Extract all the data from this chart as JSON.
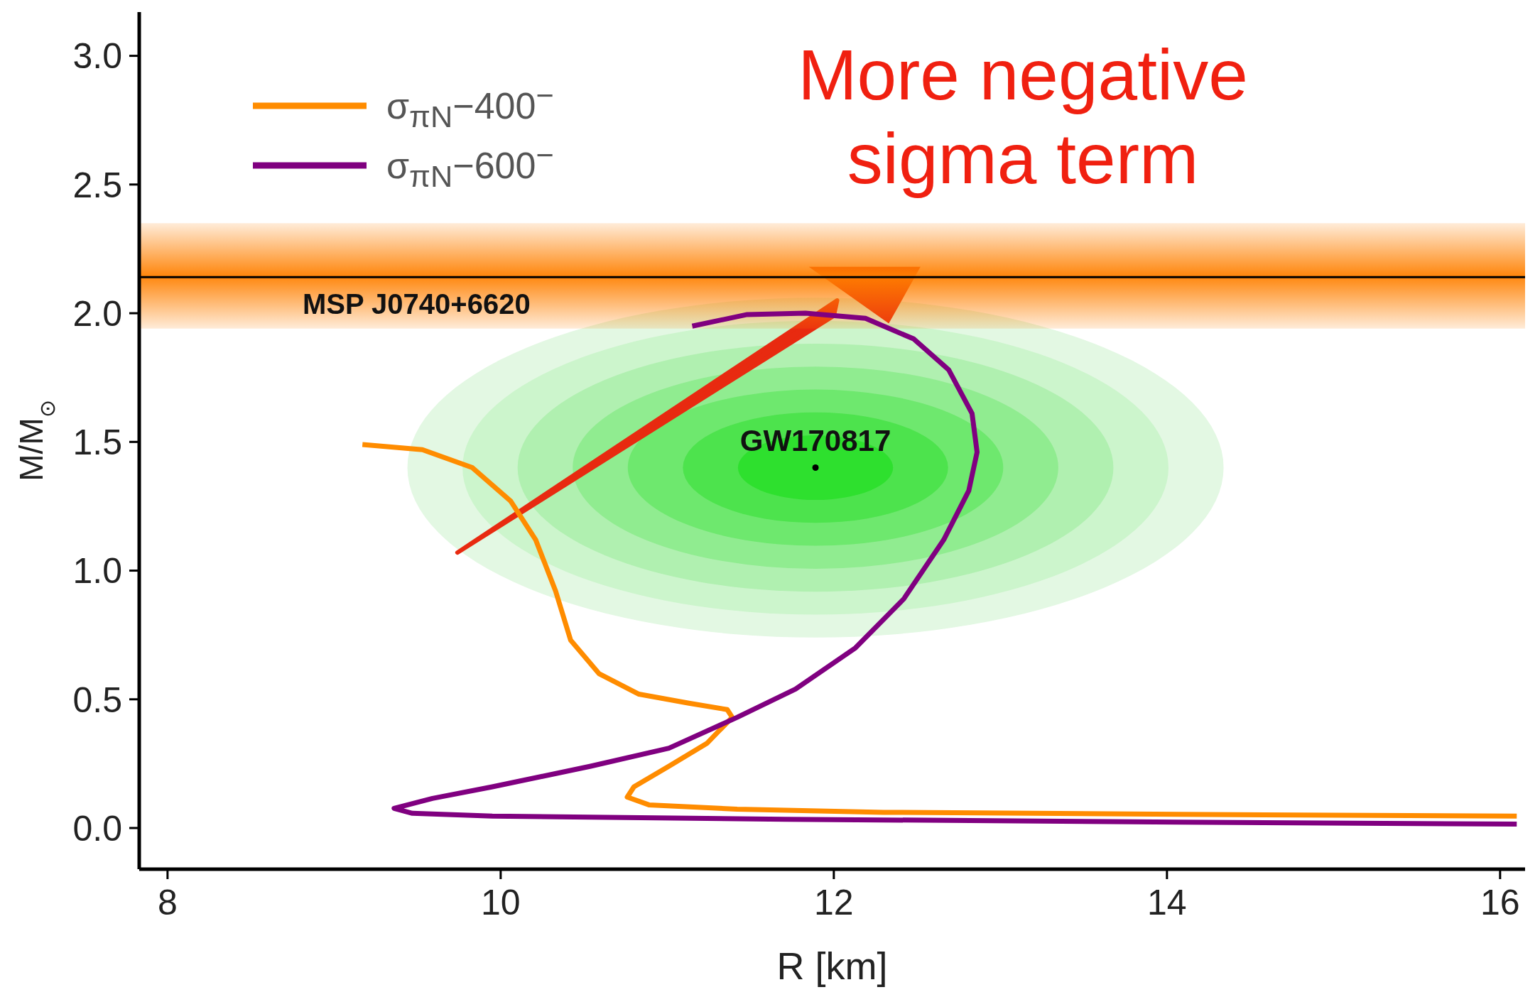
{
  "chart_data": {
    "type": "line",
    "xlabel": "R [km]",
    "ylabel": "M/M$_{⊙}$",
    "xlim": [
      7.83,
      16.15
    ],
    "ylim": [
      -0.16,
      3.17
    ],
    "xticks": [
      8,
      10,
      12,
      14,
      16
    ],
    "yticks": [
      {
        "value": 0,
        "label": "0.0"
      },
      {
        "value": 0.5,
        "label": "0.5"
      },
      {
        "value": 1,
        "label": "1.0"
      },
      {
        "value": 1.5,
        "label": "1.5"
      },
      {
        "value": 2,
        "label": "2.0"
      },
      {
        "value": 2.5,
        "label": "2.5"
      },
      {
        "value": 3,
        "label": "3.0"
      }
    ],
    "grid": false,
    "legend": "top left",
    "marker": "none",
    "line_style": "solid",
    "series": [
      {
        "name": "σ$_{πN}$−400$^{−}$",
        "color": "#ff8c00",
        "x": [
          9.17,
          9.53,
          9.83,
          10.06,
          10.21,
          10.33,
          10.42,
          10.59,
          10.83,
          11.13,
          11.36,
          11.39,
          11.24,
          11.01,
          10.8,
          10.76,
          10.89,
          11.42,
          12.3,
          14.07,
          16.1
        ],
        "values": [
          1.49,
          1.47,
          1.4,
          1.27,
          1.12,
          0.92,
          0.73,
          0.6,
          0.52,
          0.485,
          0.46,
          0.43,
          0.33,
          0.24,
          0.16,
          0.12,
          0.09,
          0.073,
          0.061,
          0.053,
          0.046
        ]
      },
      {
        "name": "σ$_{πN}$−600$^{−}$",
        "color": "#800080",
        "x": [
          11.15,
          11.48,
          11.83,
          12.19,
          12.48,
          12.69,
          12.83,
          12.86,
          12.81,
          12.66,
          12.42,
          12.13,
          11.77,
          11.42,
          11.01,
          10.54,
          9.95,
          9.59,
          9.36,
          9.47,
          9.95,
          11.71,
          14.07,
          16.1
        ],
        "values": [
          1.95,
          1.995,
          2.0,
          1.98,
          1.9,
          1.78,
          1.61,
          1.46,
          1.31,
          1.12,
          0.89,
          0.7,
          0.54,
          0.43,
          0.31,
          0.24,
          0.16,
          0.115,
          0.076,
          0.057,
          0.046,
          0.034,
          0.023,
          0.015
        ]
      },
      {
        "type": "scatter",
        "color": "#000000",
        "marker": "circle",
        "x": [
          11.89
        ],
        "values": [
          1.4
        ]
      }
    ],
    "ref_lines": [
      {
        "axis": "y",
        "value": 2.14,
        "label": "MSP J0740+6620",
        "color": "#000000"
      }
    ],
    "bands": [
      {
        "axis": "y",
        "from": 1.94,
        "to": 2.35,
        "color": "#ff8000"
      }
    ],
    "annotations": [
      "More negative sigma term",
      {
        "text": "GW170817",
        "x": 11.89,
        "y": 1.4
      }
    ]
  }
}
